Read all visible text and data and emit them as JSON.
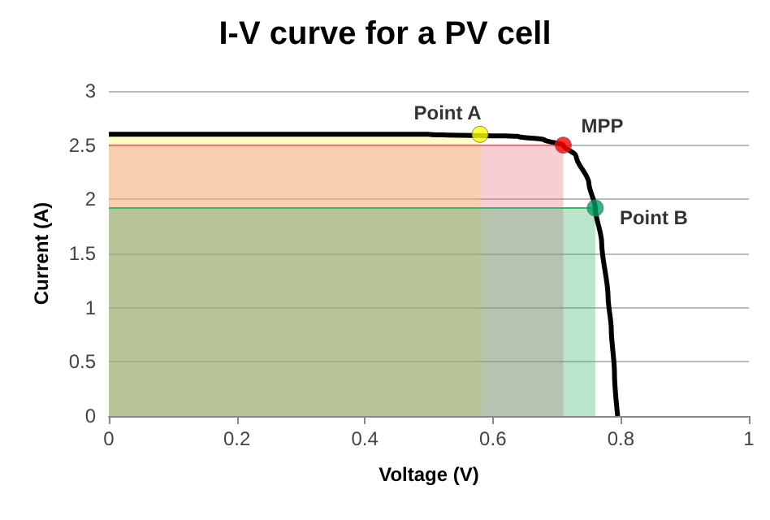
{
  "chart_data": {
    "type": "line",
    "title": "I-V curve for a PV cell",
    "xlabel": "Voltage (V)",
    "ylabel": "Current (A)",
    "xlim": [
      0,
      1
    ],
    "xticks": [
      0,
      0.2,
      0.4,
      0.6,
      0.8,
      1
    ],
    "ylim": [
      0,
      3
    ],
    "yticks": [
      0,
      0.5,
      1,
      1.5,
      2,
      2.5,
      3
    ],
    "grid": "y",
    "series": [
      {
        "type": "area",
        "color": "#ffff66",
        "x": [
          0,
          0.58
        ],
        "values": [
          2.6,
          2.6
        ]
      },
      {
        "type": "area",
        "color": "#e8737a",
        "x": [
          0,
          0.71
        ],
        "values": [
          2.5,
          2.5
        ]
      },
      {
        "type": "area",
        "color": "#3cb371",
        "x": [
          0,
          0.76
        ],
        "values": [
          1.92,
          1.92
        ]
      },
      {
        "color": "#000000",
        "x": [
          0,
          0.2,
          0.4,
          0.5,
          0.64,
          0.68,
          0.71,
          0.73,
          0.75,
          0.76,
          0.77,
          0.78,
          0.785,
          0.79,
          0.795
        ],
        "values": [
          2.6,
          2.6,
          2.6,
          2.6,
          2.58,
          2.55,
          2.5,
          2.4,
          2.15,
          1.92,
          1.6,
          1.1,
          0.8,
          0.4,
          0
        ]
      },
      {
        "type": "scatter",
        "color": "#ffff00",
        "x": [
          0.58
        ],
        "values": [
          2.6
        ]
      },
      {
        "type": "scatter",
        "color": "#ff0000",
        "x": [
          0.71
        ],
        "values": [
          2.5
        ]
      },
      {
        "type": "scatter",
        "color": "#00a060",
        "x": [
          0.76
        ],
        "values": [
          1.92
        ]
      }
    ],
    "annotations": [
      {
        "text": "Point A",
        "x": 0.58,
        "y": 2.6
      },
      {
        "text": "MPP",
        "x": 0.71,
        "y": 2.5
      },
      {
        "text": "Point B",
        "x": 0.76,
        "y": 1.92
      }
    ]
  }
}
